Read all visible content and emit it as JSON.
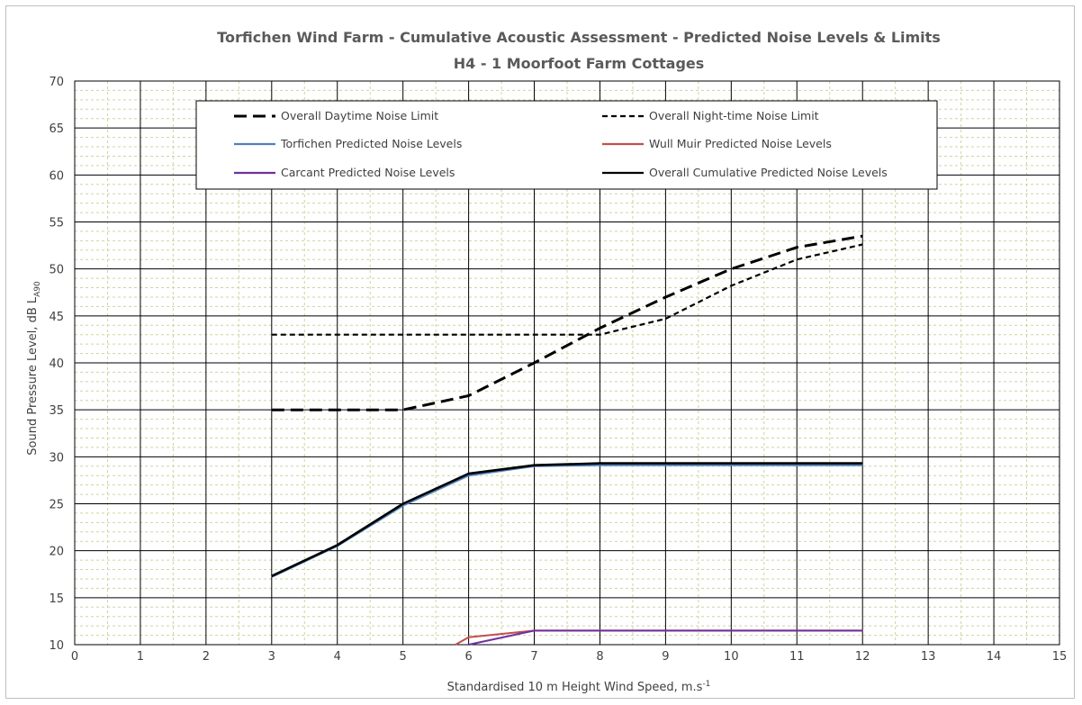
{
  "chart_data": {
    "type": "line",
    "title": "Torfichen Wind Farm - Cumulative Acoustic Assessment - Predicted Noise Levels & Limits",
    "subtitle": "H4 - 1 Moorfoot Farm Cottages",
    "xlabel": "Standardised 10 m Height Wind Speed, m.s",
    "xlabel_sup": "-1",
    "ylabel": "Sound Pressure Level, dB L",
    "ylabel_sub": "A90",
    "xlim": [
      0,
      15
    ],
    "ylim": [
      10,
      70
    ],
    "xticks": [
      "0",
      "1",
      "2",
      "3",
      "4",
      "5",
      "6",
      "7",
      "8",
      "9",
      "10",
      "11",
      "12",
      "13",
      "14",
      "15"
    ],
    "yticks": [
      "10",
      "15",
      "20",
      "25",
      "30",
      "35",
      "40",
      "45",
      "50",
      "55",
      "60",
      "65",
      "70"
    ],
    "grid": true,
    "legend_position": "top",
    "series": [
      {
        "name": "Overall Daytime Noise Limit",
        "color": "#000000",
        "dash": "long",
        "x": [
          3,
          4,
          5,
          6,
          7,
          8,
          9,
          10,
          11,
          12
        ],
        "y": [
          35,
          35,
          35,
          36.5,
          40,
          43.7,
          47,
          50,
          52.3,
          53.5
        ]
      },
      {
        "name": "Overall Night-time Noise Limit",
        "color": "#000000",
        "dash": "short",
        "x": [
          3,
          4,
          5,
          6,
          7,
          8,
          9,
          10,
          11,
          12
        ],
        "y": [
          43,
          43,
          43,
          43,
          43,
          43,
          44.7,
          48.2,
          51,
          52.6
        ]
      },
      {
        "name": "Torfichen Predicted Noise Levels",
        "color": "#4f81bd",
        "dash": "solid",
        "x": [
          3,
          4,
          5,
          6,
          7,
          8,
          9,
          10,
          11,
          12
        ],
        "y": [
          17.2,
          20.5,
          24.8,
          28,
          29,
          29.1,
          29.1,
          29.1,
          29.1,
          29.1
        ]
      },
      {
        "name": "Wull Muir Predicted Noise Levels",
        "color": "#c0504d",
        "dash": "solid",
        "x": [
          5.8,
          6,
          7,
          8,
          9,
          10,
          11,
          12
        ],
        "y": [
          10,
          10.8,
          11.5,
          11.5,
          11.5,
          11.5,
          11.5,
          11.5
        ]
      },
      {
        "name": "Carcant Predicted Noise Levels",
        "color": "#7030a0",
        "dash": "solid",
        "x": [
          6,
          7,
          8,
          9,
          10,
          11,
          12
        ],
        "y": [
          10,
          11.5,
          11.5,
          11.5,
          11.5,
          11.5,
          11.5
        ]
      },
      {
        "name": "Overall Cumulative Predicted Noise Levels",
        "color": "#000000",
        "dash": "solid",
        "x": [
          3,
          4,
          5,
          6,
          7,
          8,
          9,
          10,
          11,
          12
        ],
        "y": [
          17.3,
          20.6,
          25,
          28.2,
          29.1,
          29.3,
          29.3,
          29.3,
          29.3,
          29.3
        ]
      }
    ]
  }
}
